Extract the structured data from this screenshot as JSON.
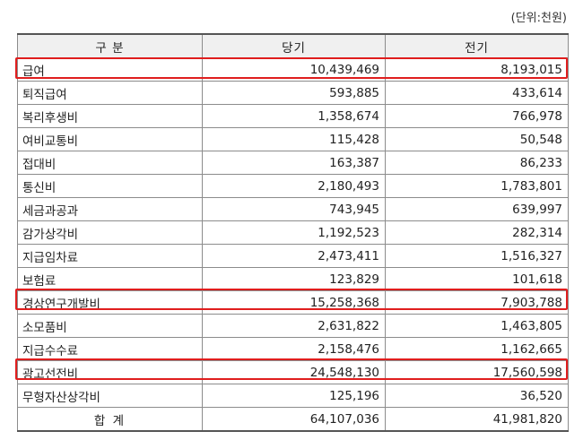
{
  "unit_label": "(단위:천원)",
  "columns": [
    "구 분",
    "당기",
    "전기"
  ],
  "rows": [
    {
      "label": "급여",
      "current": "10,439,469",
      "prior": "8,193,015"
    },
    {
      "label": "퇴직급여",
      "current": "593,885",
      "prior": "433,614"
    },
    {
      "label": "복리후생비",
      "current": "1,358,674",
      "prior": "766,978"
    },
    {
      "label": "여비교통비",
      "current": "115,428",
      "prior": "50,548"
    },
    {
      "label": "접대비",
      "current": "163,387",
      "prior": "86,233"
    },
    {
      "label": "통신비",
      "current": "2,180,493",
      "prior": "1,783,801"
    },
    {
      "label": "세금과공과",
      "current": "743,945",
      "prior": "639,997"
    },
    {
      "label": "감가상각비",
      "current": "1,192,523",
      "prior": "282,314"
    },
    {
      "label": "지급임차료",
      "current": "2,473,411",
      "prior": "1,516,327"
    },
    {
      "label": "보험료",
      "current": "123,829",
      "prior": "101,618"
    },
    {
      "label": "경상연구개발비",
      "current": "15,258,368",
      "prior": "7,903,788"
    },
    {
      "label": "소모품비",
      "current": "2,631,822",
      "prior": "1,463,805"
    },
    {
      "label": "지급수수료",
      "current": "2,158,476",
      "prior": "1,162,665"
    },
    {
      "label": "광고선전비",
      "current": "24,548,130",
      "prior": "17,560,598"
    },
    {
      "label": "무형자산상각비",
      "current": "125,196",
      "prior": "36,520"
    }
  ],
  "total": {
    "label": "합 계",
    "current": "64,107,036",
    "prior": "41,981,820"
  },
  "highlight_color": "#e01e1e"
}
